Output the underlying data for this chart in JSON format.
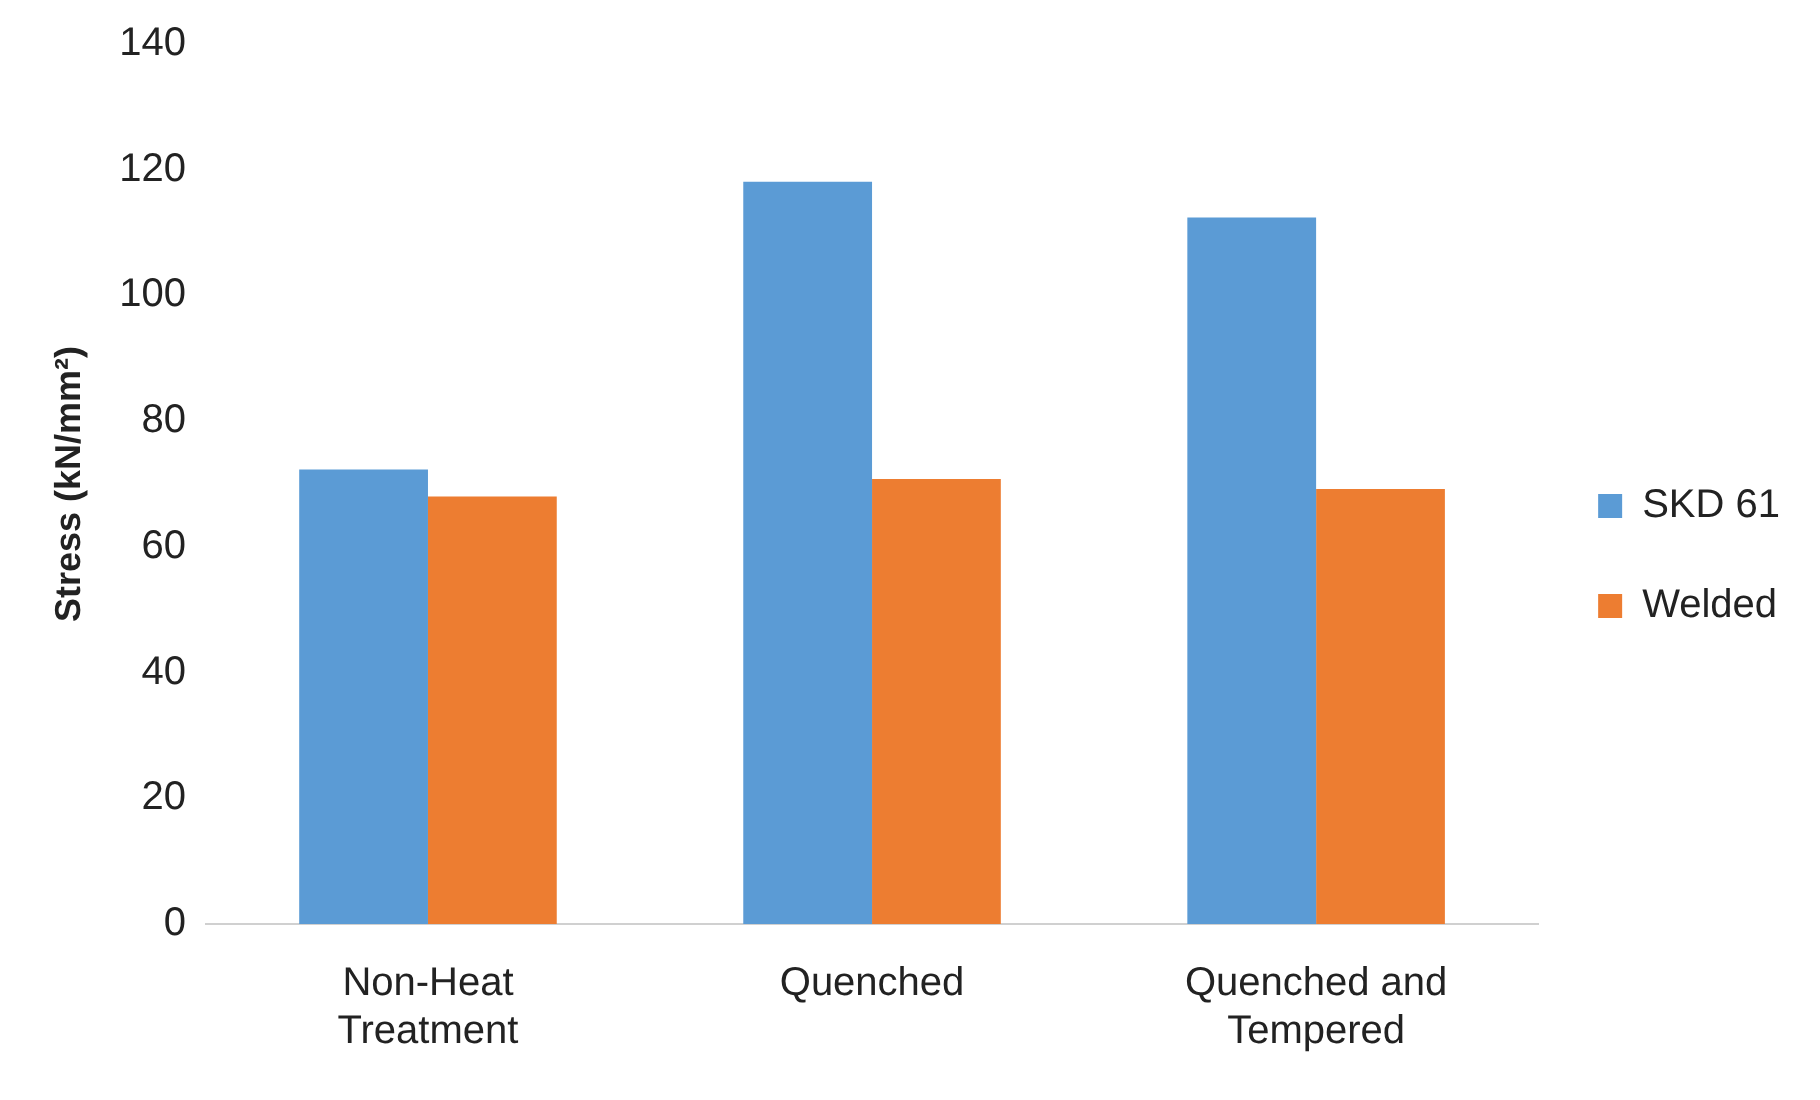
{
  "chart_data": {
    "type": "bar",
    "ylabel": "Stress (kN/mm²)",
    "categories": [
      "Non-Heat Treatment",
      "Quenched",
      "Quenched and Tempered"
    ],
    "series": [
      {
        "name": "SKD 61",
        "color": "#5b9bd5",
        "values": [
          72.3,
          118.1,
          112.4
        ]
      },
      {
        "name": "Welded",
        "color": "#ed7d31",
        "values": [
          68,
          70.8,
          69.2
        ]
      }
    ],
    "ylim": [
      0,
      140
    ],
    "yticks": [
      0,
      20,
      40,
      60,
      80,
      100,
      120,
      140
    ],
    "grid": false,
    "legend": "right"
  }
}
